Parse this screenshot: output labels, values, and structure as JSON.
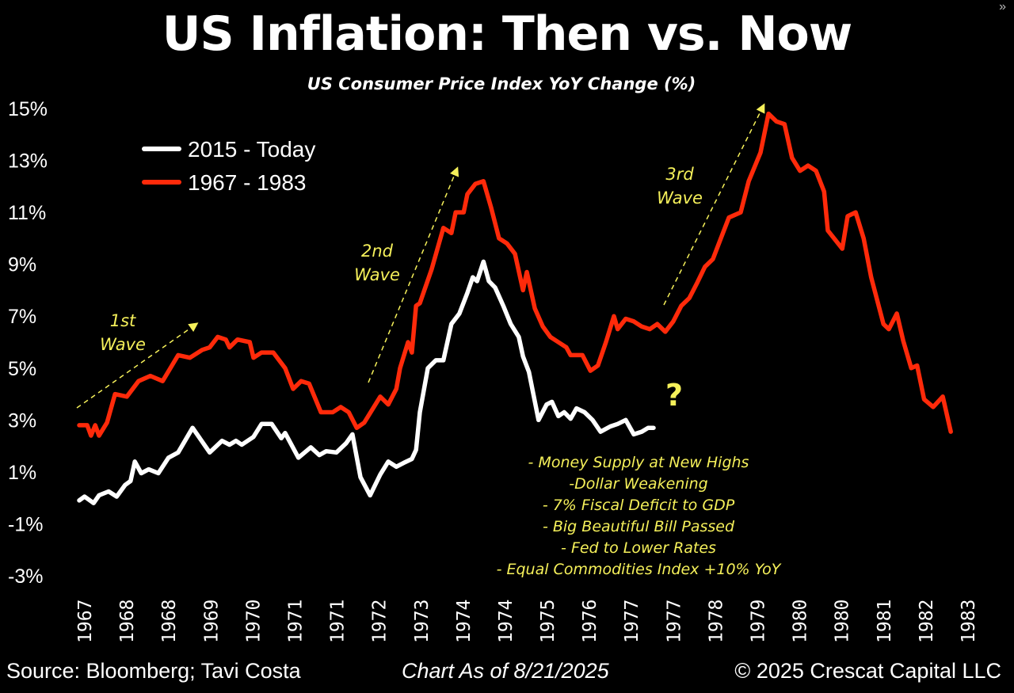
{
  "title": "US Inflation: Then vs. Now",
  "subtitle": "US Consumer Price Index YoY Change (%)",
  "footer": {
    "source": "Source: Bloomberg; Tavi Costa",
    "as_of": "Chart As of 8/21/2025",
    "copyright": "© 2025 Crescat Capital LLC"
  },
  "icons": {
    "expand": "double-chevron-right-icon"
  },
  "chart_data": {
    "type": "line",
    "title": "US Inflation: Then vs. Now",
    "subtitle": "US Consumer Price Index YoY Change (%)",
    "ylim": [
      -3,
      15
    ],
    "yticks": [
      -3,
      -1,
      1,
      3,
      5,
      7,
      9,
      11,
      13,
      15
    ],
    "ytick_labels": [
      "-3%",
      "-1%",
      "1%",
      "3%",
      "5%",
      "7%",
      "9%",
      "11%",
      "13%",
      "15%"
    ],
    "xtick_labels": [
      "1967",
      "1968",
      "1968",
      "1969",
      "1970",
      "1971",
      "1971",
      "1972",
      "1973",
      "1974",
      "1974",
      "1975",
      "1976",
      "1977",
      "1977",
      "1978",
      "1979",
      "1980",
      "1980",
      "1981",
      "1982",
      "1983"
    ],
    "grid": false,
    "legend": "top-left",
    "series": [
      {
        "name": "2015 - Today",
        "color": "#ffffff",
        "start_year": 2015,
        "points": [
          [
            2015.0,
            -0.1
          ],
          [
            2015.1,
            0.05
          ],
          [
            2015.27,
            -0.2
          ],
          [
            2015.37,
            0.1
          ],
          [
            2015.55,
            0.25
          ],
          [
            2015.7,
            0.05
          ],
          [
            2015.86,
            0.5
          ],
          [
            2015.96,
            0.65
          ],
          [
            2016.04,
            1.4
          ],
          [
            2016.16,
            0.95
          ],
          [
            2016.3,
            1.1
          ],
          [
            2016.48,
            0.95
          ],
          [
            2016.67,
            1.55
          ],
          [
            2016.85,
            1.75
          ],
          [
            2017.12,
            2.7
          ],
          [
            2017.44,
            1.75
          ],
          [
            2017.67,
            2.2
          ],
          [
            2017.81,
            2.05
          ],
          [
            2017.93,
            2.2
          ],
          [
            2018.04,
            2.05
          ],
          [
            2018.26,
            2.35
          ],
          [
            2018.41,
            2.85
          ],
          [
            2018.6,
            2.85
          ],
          [
            2018.78,
            2.3
          ],
          [
            2018.85,
            2.5
          ],
          [
            2019.1,
            1.55
          ],
          [
            2019.33,
            1.95
          ],
          [
            2019.49,
            1.65
          ],
          [
            2019.62,
            1.8
          ],
          [
            2019.81,
            1.75
          ],
          [
            2019.99,
            2.1
          ],
          [
            2020.11,
            2.45
          ],
          [
            2020.26,
            0.8
          ],
          [
            2020.44,
            0.1
          ],
          [
            2020.63,
            0.9
          ],
          [
            2020.78,
            1.4
          ],
          [
            2020.93,
            1.2
          ],
          [
            2021.07,
            1.35
          ],
          [
            2021.22,
            1.5
          ],
          [
            2021.3,
            1.85
          ],
          [
            2021.37,
            3.3
          ],
          [
            2021.52,
            5.0
          ],
          [
            2021.67,
            5.3
          ],
          [
            2021.81,
            5.3
          ],
          [
            2021.96,
            6.7
          ],
          [
            2022.11,
            7.1
          ],
          [
            2022.26,
            7.9
          ],
          [
            2022.36,
            8.5
          ],
          [
            2022.44,
            8.35
          ],
          [
            2022.56,
            9.1
          ],
          [
            2022.66,
            8.35
          ],
          [
            2022.78,
            8.1
          ],
          [
            2022.93,
            7.4
          ],
          [
            2023.07,
            6.7
          ],
          [
            2023.22,
            6.2
          ],
          [
            2023.3,
            5.45
          ],
          [
            2023.41,
            4.85
          ],
          [
            2023.59,
            3.0
          ],
          [
            2023.74,
            3.6
          ],
          [
            2023.84,
            3.7
          ],
          [
            2023.96,
            3.15
          ],
          [
            2024.07,
            3.3
          ],
          [
            2024.19,
            3.05
          ],
          [
            2024.3,
            3.45
          ],
          [
            2024.45,
            3.3
          ],
          [
            2024.6,
            3.0
          ],
          [
            2024.75,
            2.55
          ],
          [
            2024.93,
            2.75
          ],
          [
            2025.07,
            2.85
          ],
          [
            2025.22,
            3.0
          ],
          [
            2025.37,
            2.45
          ],
          [
            2025.52,
            2.55
          ],
          [
            2025.64,
            2.7
          ],
          [
            2025.74,
            2.7
          ]
        ]
      },
      {
        "name": "1967 - 1983",
        "color": "#ff2a0a",
        "start_year": 1967,
        "points": [
          [
            1967.0,
            2.8
          ],
          [
            1967.15,
            2.8
          ],
          [
            1967.22,
            2.4
          ],
          [
            1967.3,
            2.8
          ],
          [
            1967.37,
            2.4
          ],
          [
            1967.52,
            2.9
          ],
          [
            1967.67,
            4.0
          ],
          [
            1967.89,
            3.9
          ],
          [
            1968.11,
            4.5
          ],
          [
            1968.33,
            4.7
          ],
          [
            1968.56,
            4.5
          ],
          [
            1968.85,
            5.5
          ],
          [
            1969.07,
            5.4
          ],
          [
            1969.3,
            5.7
          ],
          [
            1969.44,
            5.8
          ],
          [
            1969.59,
            6.2
          ],
          [
            1969.74,
            6.1
          ],
          [
            1969.81,
            5.8
          ],
          [
            1969.96,
            6.1
          ],
          [
            1970.19,
            6.0
          ],
          [
            1970.26,
            5.4
          ],
          [
            1970.41,
            5.6
          ],
          [
            1970.63,
            5.6
          ],
          [
            1970.85,
            5.0
          ],
          [
            1971.0,
            4.2
          ],
          [
            1971.15,
            4.5
          ],
          [
            1971.3,
            4.4
          ],
          [
            1971.52,
            3.3
          ],
          [
            1971.74,
            3.3
          ],
          [
            1971.89,
            3.5
          ],
          [
            1972.04,
            3.3
          ],
          [
            1972.19,
            2.7
          ],
          [
            1972.33,
            2.9
          ],
          [
            1972.48,
            3.4
          ],
          [
            1972.63,
            3.9
          ],
          [
            1972.78,
            3.6
          ],
          [
            1972.93,
            4.2
          ],
          [
            1973.0,
            5.0
          ],
          [
            1973.15,
            6.0
          ],
          [
            1973.22,
            5.6
          ],
          [
            1973.3,
            7.4
          ],
          [
            1973.37,
            7.5
          ],
          [
            1973.59,
            8.8
          ],
          [
            1973.81,
            10.4
          ],
          [
            1973.96,
            10.2
          ],
          [
            1974.04,
            11.0
          ],
          [
            1974.19,
            11.0
          ],
          [
            1974.26,
            11.7
          ],
          [
            1974.41,
            12.1
          ],
          [
            1974.56,
            12.2
          ],
          [
            1974.7,
            11.2
          ],
          [
            1974.85,
            10.0
          ],
          [
            1975.0,
            9.8
          ],
          [
            1975.15,
            9.4
          ],
          [
            1975.3,
            8.0
          ],
          [
            1975.37,
            8.7
          ],
          [
            1975.52,
            7.3
          ],
          [
            1975.67,
            6.6
          ],
          [
            1975.81,
            6.2
          ],
          [
            1975.96,
            6.0
          ],
          [
            1976.11,
            5.8
          ],
          [
            1976.19,
            5.5
          ],
          [
            1976.41,
            5.5
          ],
          [
            1976.56,
            4.9
          ],
          [
            1976.7,
            5.1
          ],
          [
            1976.85,
            6.0
          ],
          [
            1977.0,
            7.0
          ],
          [
            1977.07,
            6.5
          ],
          [
            1977.22,
            6.9
          ],
          [
            1977.37,
            6.8
          ],
          [
            1977.52,
            6.6
          ],
          [
            1977.67,
            6.5
          ],
          [
            1977.81,
            6.7
          ],
          [
            1977.96,
            6.4
          ],
          [
            1978.11,
            6.8
          ],
          [
            1978.26,
            7.4
          ],
          [
            1978.41,
            7.7
          ],
          [
            1978.56,
            8.3
          ],
          [
            1978.7,
            8.9
          ],
          [
            1978.85,
            9.2
          ],
          [
            1979.0,
            10.0
          ],
          [
            1979.15,
            10.8
          ],
          [
            1979.37,
            11.0
          ],
          [
            1979.52,
            12.2
          ],
          [
            1979.74,
            13.3
          ],
          [
            1979.89,
            14.8
          ],
          [
            1980.04,
            14.5
          ],
          [
            1980.19,
            14.4
          ],
          [
            1980.33,
            13.1
          ],
          [
            1980.48,
            12.6
          ],
          [
            1980.63,
            12.8
          ],
          [
            1980.78,
            12.6
          ],
          [
            1980.93,
            11.8
          ],
          [
            1981.0,
            10.3
          ],
          [
            1981.27,
            9.6
          ],
          [
            1981.37,
            10.85
          ],
          [
            1981.52,
            11.0
          ],
          [
            1981.67,
            10.0
          ],
          [
            1981.81,
            8.5
          ],
          [
            1982.04,
            6.7
          ],
          [
            1982.14,
            6.5
          ],
          [
            1982.29,
            7.1
          ],
          [
            1982.41,
            6.05
          ],
          [
            1982.56,
            5.0
          ],
          [
            1982.67,
            5.1
          ],
          [
            1982.8,
            3.8
          ],
          [
            1982.97,
            3.5
          ],
          [
            1983.15,
            3.9
          ],
          [
            1983.3,
            2.55
          ]
        ]
      }
    ],
    "annotations": [
      {
        "text": [
          "1st",
          "Wave"
        ],
        "color": "#f5f05a"
      },
      {
        "text": [
          "2nd",
          "Wave"
        ],
        "color": "#f5f05a"
      },
      {
        "text": [
          "3rd",
          "Wave"
        ],
        "color": "#f5f05a"
      },
      {
        "text": [
          "?"
        ],
        "color": "#f5f05a"
      },
      {
        "text": [
          "- Money Supply at New Highs",
          "-Dollar Weakening",
          "- 7% Fiscal Deficit to GDP",
          "- Big Beautiful Bill Passed",
          "- Fed to Lower Rates",
          "- Equal Commodities Index +10% YoY"
        ],
        "color": "#f5f05a"
      }
    ]
  }
}
